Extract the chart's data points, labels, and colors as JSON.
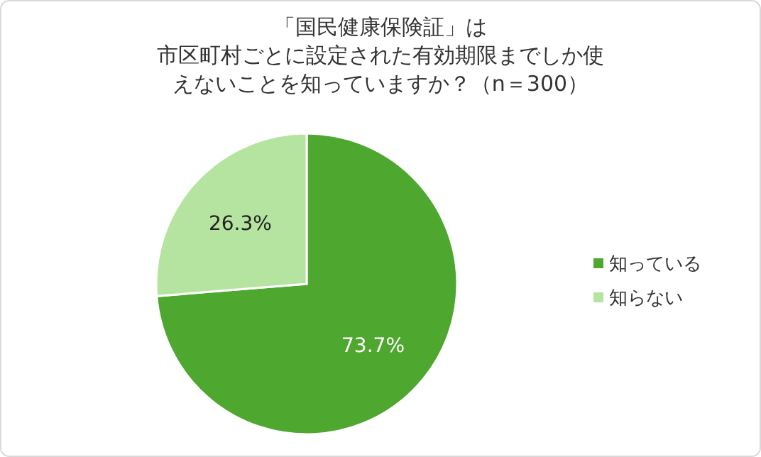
{
  "chart_data": {
    "type": "pie",
    "title": "「国民健康保険証」は",
    "subtitle": "市区町村ごとに設定された有効期限までしか使えないことを知っていますか？（n＝300）",
    "categories": [
      "知っている",
      "知らない"
    ],
    "values": [
      73.7,
      26.3
    ],
    "colors": [
      "#4ea72e",
      "#b5e3a0"
    ],
    "value_labels": [
      "73.7%",
      "26.3%"
    ],
    "legend": "right"
  }
}
